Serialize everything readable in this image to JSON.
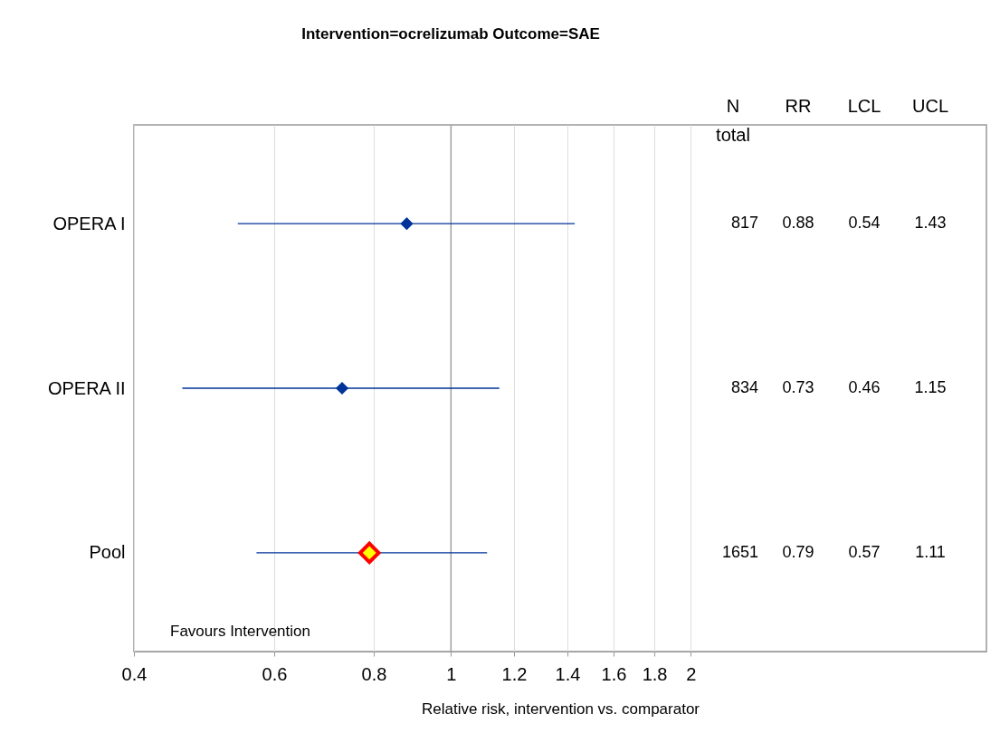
{
  "chart_data": {
    "type": "scatter",
    "orientation": "horizontal",
    "title": "Intervention=ocrelizumab Outcome=SAE",
    "xlabel": "Relative risk, intervention vs. comparator",
    "categories": [
      "OPERA I",
      "OPERA II",
      "Pool"
    ],
    "marker": "diamond",
    "series": [
      {
        "color": "#003399",
        "values": [
          0.88,
          0.73,
          null
        ],
        "errors": [
          [
            0.54,
            1.43
          ],
          [
            0.46,
            1.15
          ],
          null
        ]
      },
      {
        "color": "#ff0000",
        "values": [
          null,
          null,
          0.79
        ],
        "errors": [
          null,
          null,
          [
            0.57,
            1.11
          ]
        ]
      }
    ],
    "log": "x",
    "xlim": [
      0.4,
      4.7
    ],
    "xticks": [
      0.4,
      0.6,
      0.8,
      1,
      1.2,
      1.4,
      1.6,
      1.8,
      2
    ],
    "grid": "x",
    "ref_lines": [
      {
        "axis": "x",
        "value": 1,
        "color": "#a0a0a0"
      }
    ],
    "annotations": [
      "N total",
      "RR",
      "LCL",
      "UCL",
      "Favours Intervention",
      "817",
      "0.88",
      "0.54",
      "1.43",
      "834",
      "0.73",
      "0.46",
      "1.15",
      "1651",
      "0.79",
      "0.57",
      "1.11"
    ]
  }
}
